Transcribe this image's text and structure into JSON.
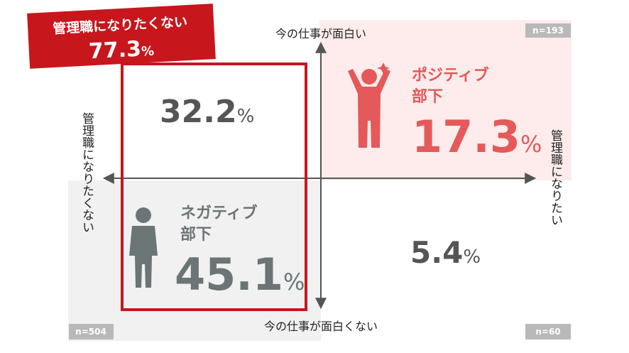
{
  "banner": {
    "title": "管理職になりたくない",
    "value": 77.3,
    "unit": "%"
  },
  "axes": {
    "top": "今の仕事が面白い",
    "bottom": "今の仕事が面白くない",
    "left": "管理職になりたくない",
    "right": "管理職になりたい"
  },
  "quadrants": {
    "top_left": {
      "value": 32.2,
      "unit": "%"
    },
    "top_right": {
      "label": [
        "ポジティブ",
        "部下"
      ],
      "value": 17.3,
      "unit": "%",
      "sample": "n=193"
    },
    "bottom_left": {
      "label": [
        "ネガティブ",
        "部下"
      ],
      "value": 45.1,
      "unit": "%",
      "sample": "n=504"
    },
    "bottom_right": {
      "value": 5.4,
      "unit": "%",
      "sample": "n=60"
    }
  }
}
